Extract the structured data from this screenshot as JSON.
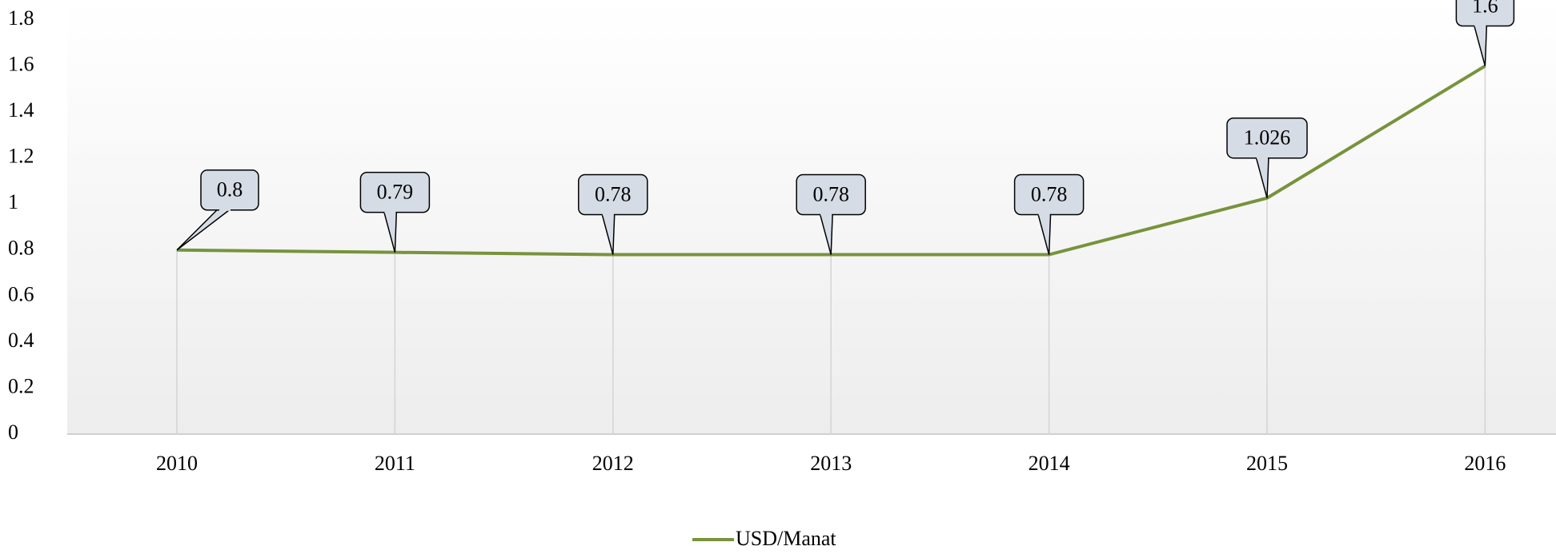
{
  "chart_data": {
    "type": "line",
    "categories": [
      "2010",
      "2011",
      "2012",
      "2013",
      "2014",
      "2015",
      "2016"
    ],
    "series": [
      {
        "name": "USD/Manat",
        "color": "#77933c",
        "values": [
          0.8,
          0.79,
          0.78,
          0.78,
          0.78,
          1.026,
          1.6
        ]
      }
    ],
    "ylim": [
      0,
      1.8
    ],
    "yticks": [
      0,
      0.2,
      0.4,
      0.6,
      0.8,
      1,
      1.2,
      1.4,
      1.6,
      1.8
    ],
    "legend": "bottom"
  }
}
